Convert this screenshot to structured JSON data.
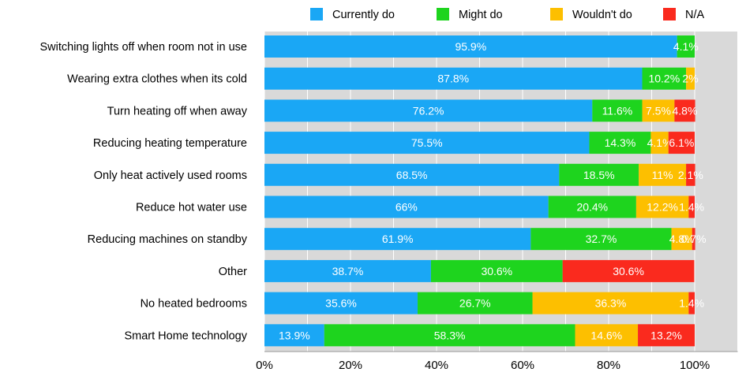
{
  "chart_data": {
    "type": "bar",
    "orientation": "horizontal",
    "stacked": true,
    "categories": [
      "Switching lights off when room not in use",
      "Wearing extra clothes when its cold",
      "Turn heating off when away",
      "Reducing heating temperature",
      "Only heat actively used rooms",
      "Reduce hot water use",
      "Reducing machines on standby",
      "Other",
      "No heated bedrooms",
      "Smart Home technology"
    ],
    "series": [
      {
        "name": "Currently do",
        "color": "#1aa7f5",
        "values": [
          95.9,
          87.8,
          76.2,
          75.5,
          68.5,
          66,
          61.9,
          38.7,
          35.6,
          13.9
        ],
        "labels": [
          "95.9%",
          "87.8%",
          "76.2%",
          "75.5%",
          "68.5%",
          "66%",
          "61.9%",
          "38.7%",
          "35.6%",
          "13.9%"
        ]
      },
      {
        "name": "Might do",
        "color": "#1ed41e",
        "values": [
          4.1,
          10.2,
          11.6,
          14.3,
          18.5,
          20.4,
          32.7,
          30.6,
          26.7,
          58.3
        ],
        "labels": [
          "4.1%",
          "10.2%",
          "11.6%",
          "14.3%",
          "18.5%",
          "20.4%",
          "32.7%",
          "30.6%",
          "26.7%",
          "58.3%"
        ]
      },
      {
        "name": "Wouldn't do",
        "color": "#fdbf00",
        "values": [
          0,
          2,
          7.5,
          4.1,
          11,
          12.2,
          4.8,
          0,
          36.3,
          14.6
        ],
        "labels": [
          "",
          "2%",
          "7.5%",
          "4.1%",
          "11%",
          "12.2%",
          "4.8%",
          "",
          "36.3%",
          "14.6%"
        ]
      },
      {
        "name": "N/A",
        "color": "#fa2a1e",
        "values": [
          0,
          0,
          4.8,
          6.1,
          2.1,
          1.4,
          0.7,
          30.6,
          1.4,
          13.2
        ],
        "labels": [
          "",
          "",
          "4.8%",
          "6.1%",
          "2.1%",
          "1.4%",
          "0.7%",
          "30.6%",
          "1.4%",
          "13.2%"
        ]
      }
    ],
    "x_ticks": [
      "0%",
      "20%",
      "40%",
      "60%",
      "80%",
      "100%"
    ],
    "xlim": [
      0,
      110
    ],
    "grid": true,
    "legend_position": "top",
    "title": "",
    "xlabel": "",
    "ylabel": ""
  }
}
